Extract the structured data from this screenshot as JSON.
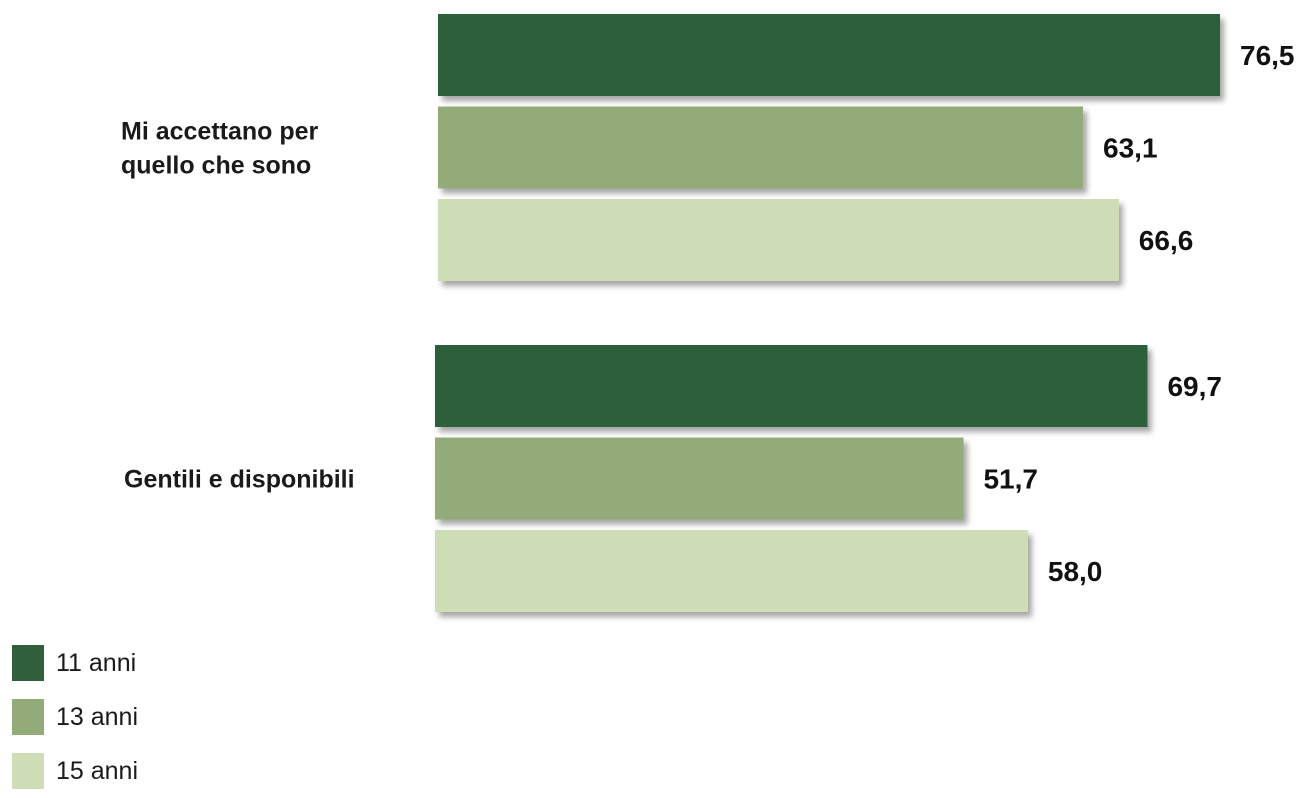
{
  "chart_data": {
    "type": "bar",
    "orientation": "horizontal",
    "categories": [
      "Mi accettano per quello che sono",
      "Gentili e disponibili"
    ],
    "category_lines": [
      [
        "Mi accettano per",
        "quello che sono"
      ],
      [
        "Gentili e disponibili"
      ]
    ],
    "series": [
      {
        "name": "11 anni",
        "color": "#2f5f3c",
        "values": [
          76.5,
          69.7
        ],
        "labels": [
          "76,5",
          "69,7"
        ]
      },
      {
        "name": "13 anni",
        "color": "#93ab79",
        "values": [
          63.1,
          51.7
        ],
        "labels": [
          "63,1",
          "51,7"
        ]
      },
      {
        "name": "15 anni",
        "color": "#cfddb6",
        "values": [
          66.6,
          58.0
        ],
        "labels": [
          "66,6",
          "58,0"
        ]
      }
    ],
    "xlim": [
      0,
      76.5
    ],
    "grid": false,
    "legend_position": "bottom-left"
  }
}
